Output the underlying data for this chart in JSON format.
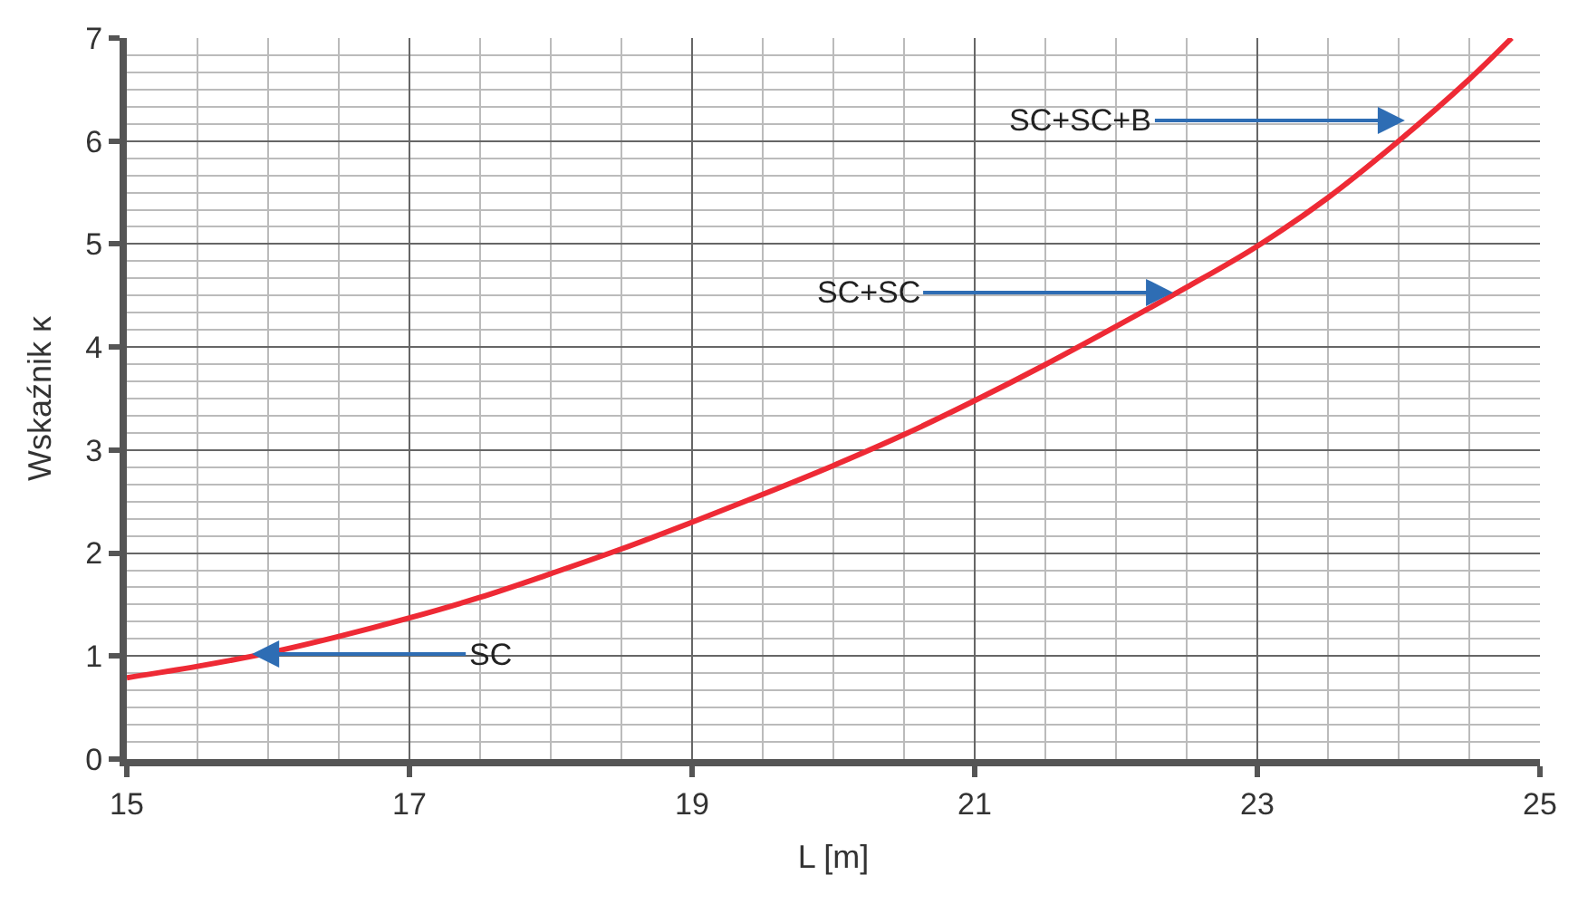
{
  "chart_data": {
    "type": "line",
    "xlabel": "L [m]",
    "ylabel": "Wskaźnik κ",
    "x": [
      15,
      15.5,
      16,
      16.5,
      17,
      17.5,
      18,
      18.5,
      19,
      19.5,
      20,
      20.5,
      21,
      21.5,
      22,
      22.5,
      23,
      23.5,
      24,
      24.5,
      24.8
    ],
    "series": [
      {
        "color": "#ee2a35",
        "values": [
          0.79,
          0.9,
          1.03,
          1.19,
          1.37,
          1.57,
          1.8,
          2.04,
          2.3,
          2.57,
          2.85,
          3.15,
          3.48,
          3.83,
          4.2,
          4.58,
          4.98,
          5.45,
          6.0,
          6.6,
          7.0
        ]
      }
    ],
    "xlim": [
      15,
      25
    ],
    "ylim": [
      0,
      7
    ],
    "xticks": [
      15,
      17,
      19,
      21,
      23,
      25
    ],
    "yticks": [
      0,
      1,
      2,
      3,
      4,
      5,
      6,
      7
    ],
    "grid": true,
    "marker": "none",
    "line_style": "solid",
    "annotations": [
      {
        "text": "SC",
        "x": 15.86,
        "y": 1.02
      },
      {
        "text": "SC+SC",
        "x": 22.43,
        "y": 4.53
      },
      {
        "text": "SC+SC+B",
        "x": 24.07,
        "y": 6.2
      }
    ]
  }
}
